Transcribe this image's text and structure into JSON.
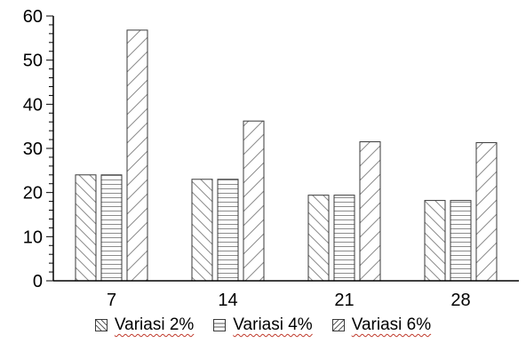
{
  "chart_data": {
    "type": "bar",
    "categories": [
      "7",
      "14",
      "21",
      "28"
    ],
    "series": [
      {
        "name": "Variasi 2%",
        "pattern": "diag-down",
        "values": [
          24,
          23,
          19.4,
          18.2
        ]
      },
      {
        "name": "Variasi 4%",
        "pattern": "horizontal",
        "values": [
          24,
          23,
          19.4,
          18.2
        ]
      },
      {
        "name": "Variasi 6%",
        "pattern": "diag-up",
        "values": [
          56.8,
          36.2,
          31.5,
          31.3
        ]
      }
    ],
    "ylim": [
      0,
      60
    ],
    "yticks": [
      0,
      10,
      20,
      30,
      40,
      50,
      60
    ],
    "grid": false,
    "legend_position": "bottom",
    "bar_stroke": "#3a3a3a",
    "hatch_color": "#8c8c8c"
  }
}
